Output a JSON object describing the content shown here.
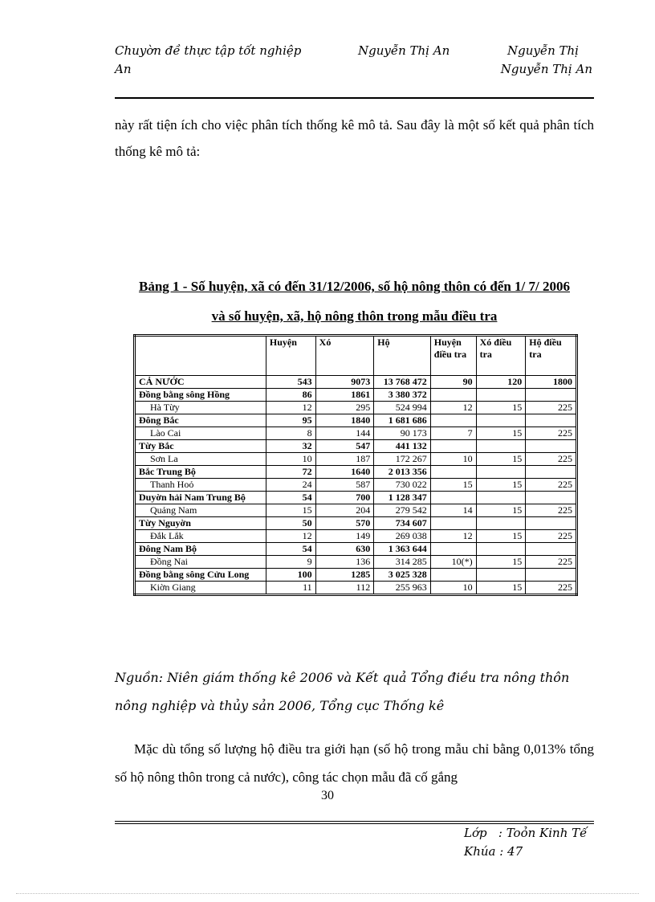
{
  "header": {
    "left": "Chuyờn đề thực tập tốt nghiệp",
    "left_cont": "An",
    "center": "Nguyễn Thị An",
    "right": "Nguyễn Thị",
    "right_cont": "Nguyễn Thị An"
  },
  "intro_paragraph": "này rất tiện ích cho việc phân tích thống kê mô tả. Sau đây là một số kết quả phân tích thống kê mô tả:",
  "table_title_line1": "Bảng 1 - Số huyện, xã có đến 31/12/2006, số hộ nông thôn có đến 1/ 7/ 2006",
  "table_title_line2": "và số huyện, xã, hộ nông thôn trong mẫu điều tra",
  "table": {
    "columns": [
      "",
      "Huyện",
      "Xó",
      "Hộ",
      "Huyện điều tra",
      "Xó điều tra",
      "Hộ điều tra"
    ],
    "rows": [
      {
        "bold": true,
        "cells": [
          "CẢ NƯỚC",
          "543",
          "9073",
          "13 768 472",
          "90",
          "120",
          "1800"
        ]
      },
      {
        "bold": true,
        "cells": [
          "Đồng bằng sông Hồng",
          "86",
          "1861",
          "3 380 372",
          "",
          "",
          ""
        ]
      },
      {
        "bold": false,
        "cells": [
          "Hà Từy",
          "12",
          "295",
          "524 994",
          "12",
          "15",
          "225"
        ]
      },
      {
        "bold": true,
        "cells": [
          "Đông Bắc",
          "95",
          "1840",
          "1 681 686",
          "",
          "",
          ""
        ]
      },
      {
        "bold": false,
        "cells": [
          "Lào Cai",
          "8",
          "144",
          "90 173",
          "7",
          "15",
          "225"
        ]
      },
      {
        "bold": true,
        "cells": [
          "Từy Bắc",
          "32",
          "547",
          "441 132",
          "",
          "",
          ""
        ]
      },
      {
        "bold": false,
        "cells": [
          "Sơn La",
          "10",
          "187",
          "172 267",
          "10",
          "15",
          "225"
        ]
      },
      {
        "bold": true,
        "cells": [
          "Bắc Trung Bộ",
          "72",
          "1640",
          "2 013 356",
          "",
          "",
          ""
        ]
      },
      {
        "bold": false,
        "cells": [
          "Thanh Hoỏ",
          "24",
          "587",
          "730 022",
          "15",
          "15",
          "225"
        ]
      },
      {
        "bold": true,
        "cells": [
          "Duyờn hải Nam Trung Bộ",
          "54",
          "700",
          "1 128 347",
          "",
          "",
          ""
        ]
      },
      {
        "bold": false,
        "cells": [
          "Quảng Nam",
          "15",
          "204",
          "279 542",
          "14",
          "15",
          "225"
        ]
      },
      {
        "bold": true,
        "cells": [
          "Từy Nguyờn",
          "50",
          "570",
          "734 607",
          "",
          "",
          ""
        ]
      },
      {
        "bold": false,
        "cells": [
          "Đắk Lắk",
          "12",
          "149",
          "269 038",
          "12",
          "15",
          "225"
        ]
      },
      {
        "bold": true,
        "cells": [
          "Đông Nam Bộ",
          "54",
          "630",
          "1 363 644",
          "",
          "",
          ""
        ]
      },
      {
        "bold": false,
        "cells": [
          "Đồng Nai",
          "9",
          "136",
          "314 285",
          "10(*)",
          "15",
          "225"
        ]
      },
      {
        "bold": true,
        "cells": [
          "Đồng bằng sông Cửu Long",
          "100",
          "1285",
          "3 025 328",
          "",
          "",
          ""
        ]
      },
      {
        "bold": false,
        "cells": [
          "Kiờn Giang",
          "11",
          "112",
          "255 963",
          "10",
          "15",
          "225"
        ]
      }
    ]
  },
  "source_note": "Nguồn: Niên giám thống kê 2006 và Kết quả Tổng điều tra nông thôn nông nghiệp và thủy sản 2006, Tổng cục Thống kê",
  "closing_paragraph": "Mặc dù tổng số lượng hộ điều tra giới hạn (số hộ trong mẫu chỉ bằng 0,013% tổng số hộ nông thôn trong cả nước), công tác chọn mẫu đã cố gắng",
  "page_number": "30",
  "footer": {
    "class_line": "Lớp   : Toỏn Kinh Tế",
    "course_line": "Khúa : 47"
  }
}
